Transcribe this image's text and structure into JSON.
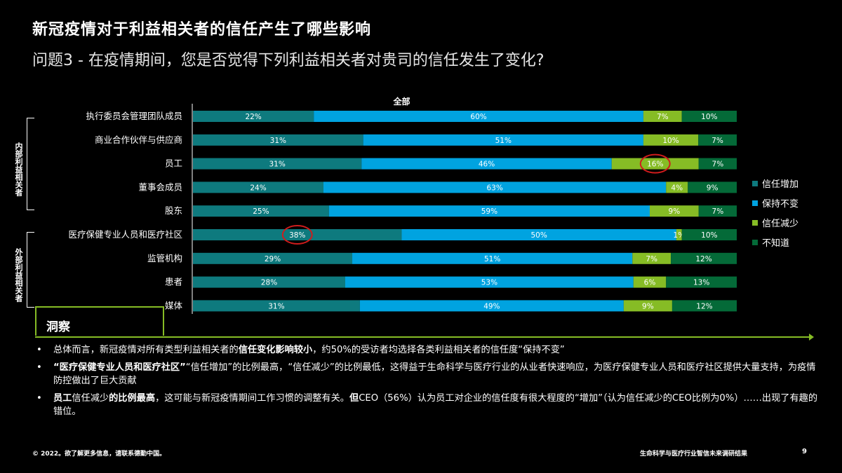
{
  "title": "新冠疫情对于利益相关者的信任产生了哪些影响",
  "subtitle": "问题3 - 在疫情期间，您是否觉得下列利益相关者对贵司的信任发生了变化?",
  "groups": {
    "internal": "内部利益相关者",
    "external": "外部利益相关者"
  },
  "chart_data": {
    "type": "bar",
    "orientation": "horizontal",
    "stacked": true,
    "title": "全部",
    "categories": [
      "执行委员会管理团队成员",
      "商业合作伙伴与供应商",
      "员工",
      "董事会成员",
      "股东",
      "医疗保健专业人员和医疗社区",
      "监管机构",
      "患者",
      "媒体"
    ],
    "series": [
      {
        "name": "信任增加",
        "color": "#0e7a7e",
        "values": [
          22,
          31,
          31,
          24,
          25,
          38,
          29,
          28,
          31
        ]
      },
      {
        "name": "保持不变",
        "color": "#00a3e0",
        "values": [
          60,
          51,
          46,
          63,
          59,
          50,
          51,
          53,
          49
        ]
      },
      {
        "name": "信任减少",
        "color": "#86bc25",
        "values": [
          7,
          10,
          16,
          4,
          9,
          1,
          7,
          6,
          9
        ]
      },
      {
        "name": "不知道",
        "color": "#046a38",
        "values": [
          10,
          7,
          7,
          9,
          7,
          10,
          12,
          13,
          12
        ]
      }
    ],
    "unit": "%",
    "highlights": [
      {
        "category": "员工",
        "series": "信任减少"
      },
      {
        "category": "医疗保健专业人员和医疗社区",
        "series": "信任增加"
      }
    ],
    "legend_position": "right"
  },
  "insight": {
    "label": "洞察",
    "bullets": [
      [
        {
          "t": "总体而言，新冠疫情对所有类型利益相关者的",
          "b": false
        },
        {
          "t": "信任变化影响较小",
          "b": true
        },
        {
          "t": "，约50%的受访者均选择各类利益相关者的信任度“保持不变”",
          "b": false
        }
      ],
      [
        {
          "t": "“医疗保健专业人员和医疗社区”",
          "b": true
        },
        {
          "t": "“信任增加”的比例最高，“信任减少”的比例最低，这得益于生命科学与医疗行业的从业者快速响应，为医疗保健专业人员和医疗社区提供大量支持，为疫情防控做出了巨大贡献",
          "b": false
        }
      ],
      [
        {
          "t": "员工",
          "b": true
        },
        {
          "t": "信任减少",
          "b": false
        },
        {
          "t": "的比例最高",
          "b": true
        },
        {
          "t": "，这可能与新冠疫情期间工作习惯的调整有关。",
          "b": false
        },
        {
          "t": "但",
          "b": true
        },
        {
          "t": "CEO（56%）认为员工对企业的信任度有很大程度的“增加”（认为信任减少的CEO比例为0%）……出现了有趣的错位。",
          "b": false
        }
      ]
    ]
  },
  "footer": {
    "copyright": "© 2022。欲了解更多信息，请联系德勤中国。",
    "report": "生命科学与医疗行业智信未来调研结果",
    "page": "9"
  }
}
